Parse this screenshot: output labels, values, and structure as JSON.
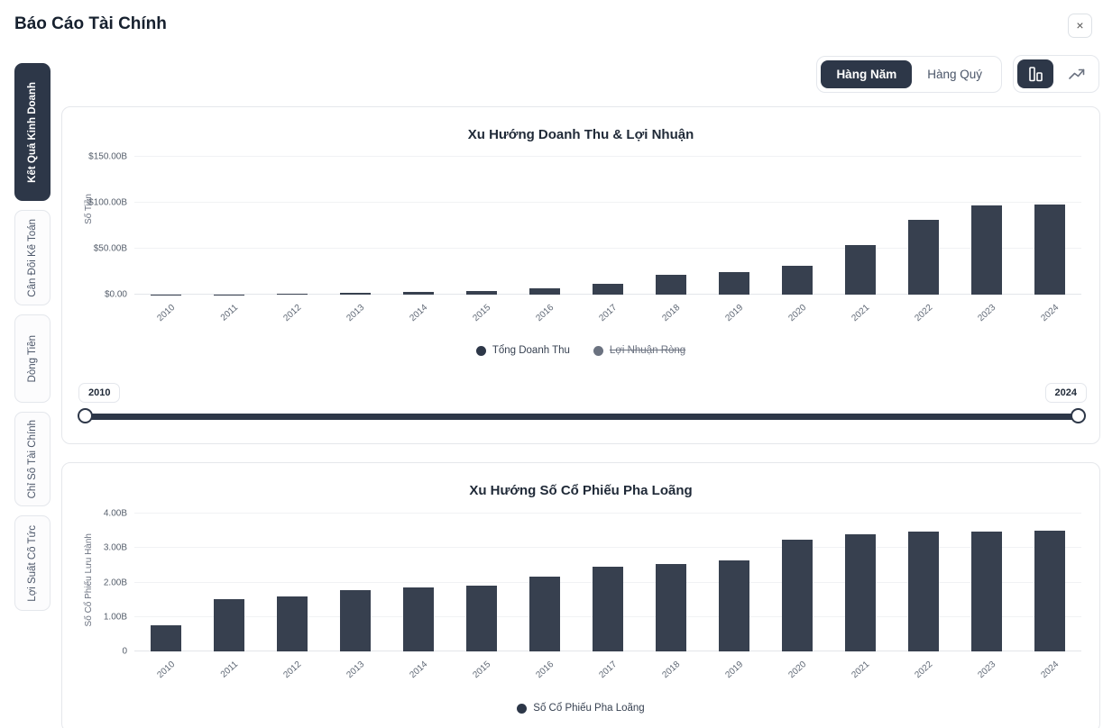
{
  "header": {
    "title": "Báo Cáo Tài Chính",
    "close_icon": "×"
  },
  "controls": {
    "period_toggle": {
      "yearly_label": "Hàng Năm",
      "quarterly_label": "Hàng Quý",
      "selected": "Hàng Năm"
    },
    "chart_type_toggle": {
      "selected": "bar",
      "options": [
        "bar-chart-icon",
        "line-chart-icon"
      ]
    }
  },
  "sidebar": {
    "tabs": [
      {
        "label": "Kết Quả Kinh Doanh",
        "active": true
      },
      {
        "label": "Cân Đối Kế Toán",
        "active": false
      },
      {
        "label": "Dòng Tiền",
        "active": false
      },
      {
        "label": "Chỉ Số Tài Chính",
        "active": false
      },
      {
        "label": "Lợi Suất Cổ Tức",
        "active": false
      }
    ]
  },
  "colors": {
    "accent": "#2d3748",
    "bar": "#37404f",
    "muted": "#6b7280"
  },
  "slider": {
    "start_label": "2010",
    "end_label": "2024"
  },
  "chart_data": [
    {
      "type": "bar",
      "title": "Xu Hướng Doanh Thu & Lợi Nhuận",
      "ylabel": "Số Tiền",
      "categories": [
        "2010",
        "2011",
        "2012",
        "2013",
        "2014",
        "2015",
        "2016",
        "2017",
        "2018",
        "2019",
        "2020",
        "2021",
        "2022",
        "2023",
        "2024"
      ],
      "series": [
        {
          "name": "Tổng Doanh Thu",
          "color": "#2d3748",
          "values": [
            0.12,
            0.2,
            0.41,
            2.0,
            3.2,
            4.05,
            7.0,
            11.76,
            21.46,
            24.58,
            31.5,
            53.8,
            81.5,
            96.8,
            97.7
          ]
        }
      ],
      "legend": [
        {
          "label": "Tổng Doanh Thu",
          "disabled": false
        },
        {
          "label": "Lợi Nhuận Ròng",
          "disabled": true
        }
      ],
      "ylim": [
        0,
        150
      ],
      "yticks": [
        "$0.00",
        "$50.00B",
        "$100.00B",
        "$150.00B"
      ],
      "grid": true,
      "legend_position": "bottom"
    },
    {
      "type": "bar",
      "title": "Xu Hướng Số Cổ Phiếu Pha Loãng",
      "ylabel": "Số Cổ Phiếu Lưu Hành",
      "categories": [
        "2010",
        "2011",
        "2012",
        "2013",
        "2014",
        "2015",
        "2016",
        "2017",
        "2018",
        "2019",
        "2020",
        "2021",
        "2022",
        "2023",
        "2024"
      ],
      "series": [
        {
          "name": "Số Cổ Phiếu Pha Loãng",
          "color": "#2d3748",
          "values": [
            0.75,
            1.52,
            1.6,
            1.79,
            1.87,
            1.9,
            2.16,
            2.45,
            2.55,
            2.63,
            3.25,
            3.39,
            3.47,
            3.49,
            3.5
          ]
        }
      ],
      "legend": [
        {
          "label": "Số Cổ Phiếu Pha Loãng",
          "disabled": false
        }
      ],
      "ylim": [
        0,
        4
      ],
      "yticks": [
        "0",
        "1.00B",
        "2.00B",
        "3.00B",
        "4.00B"
      ],
      "grid": true,
      "legend_position": "bottom"
    }
  ]
}
